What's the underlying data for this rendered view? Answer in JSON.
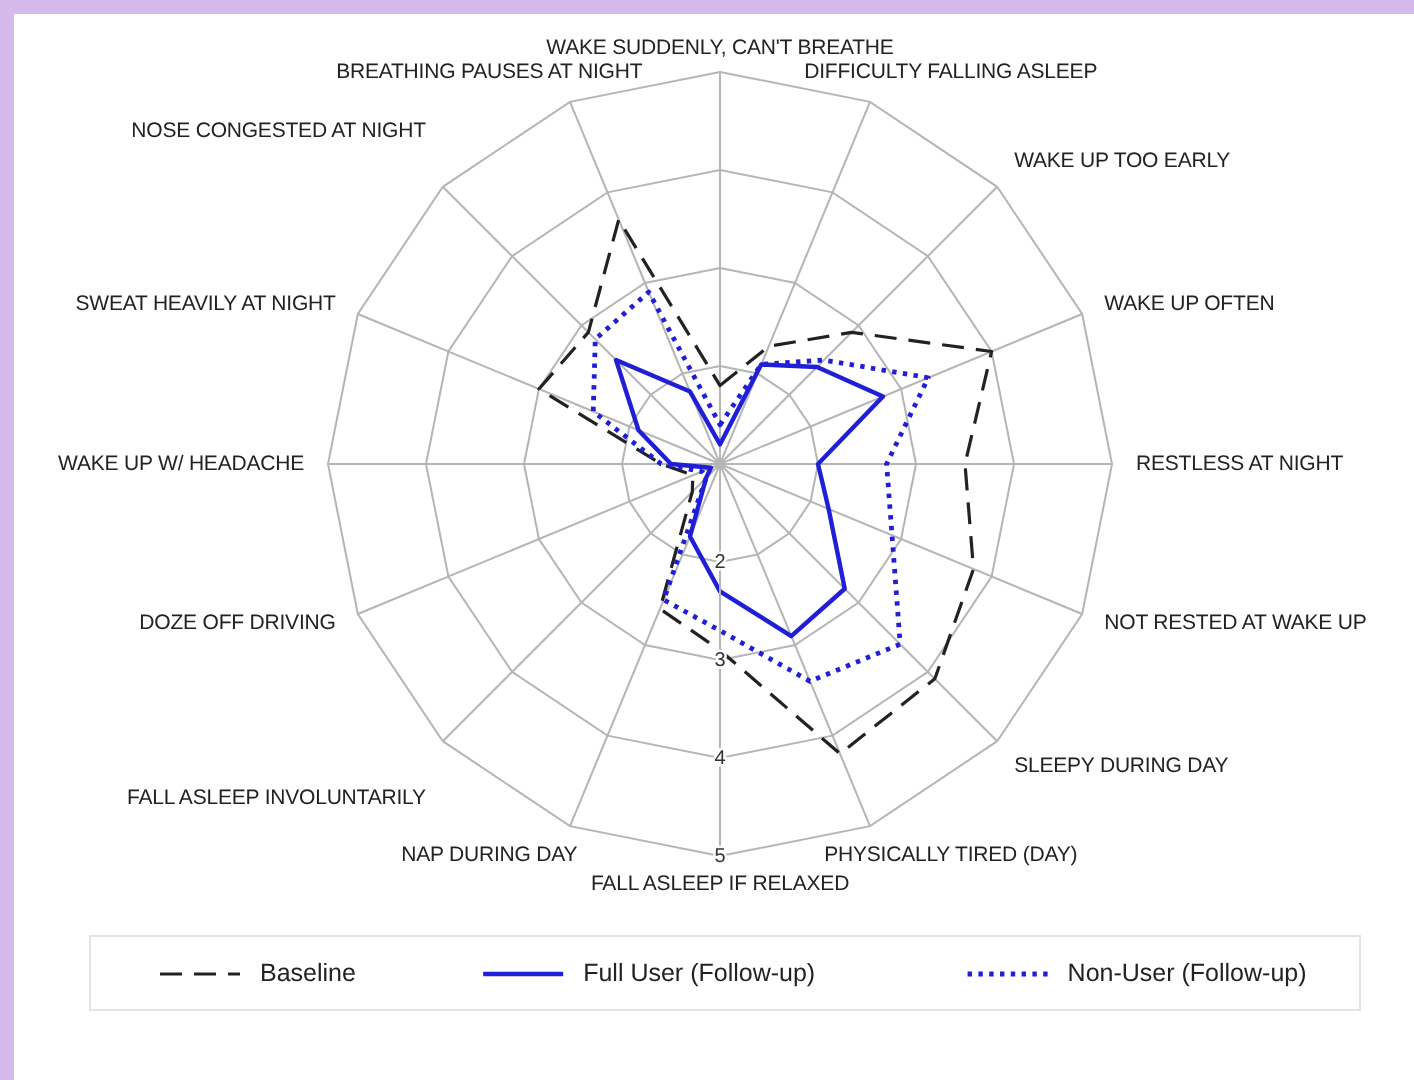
{
  "chart_data": {
    "type": "radar",
    "categories": [
      "WAKE SUDDENLY, CAN'T BREATHE",
      "DIFFICULTY FALLING ASLEEP",
      "WAKE UP TOO EARLY",
      "WAKE UP OFTEN",
      "RESTLESS AT NIGHT",
      "NOT RESTED AT WAKE UP",
      "SLEEPY DURING DAY",
      "PHYSICALLY TIRED (DAY)",
      "FALL ASLEEP IF RELAXED",
      "NAP DURING DAY",
      "FALL ASLEEP INVOLUNTARILY",
      "DOZE OFF DRIVING",
      "WAKE UP W/ HEADACHE",
      "SWEAT HEAVILY AT NIGHT",
      "NOSE CONGESTED AT NIGHT",
      "BREATHING PAUSES AT NIGHT"
    ],
    "series": [
      {
        "name": "Baseline",
        "color": "#222222",
        "line_style": "dashed",
        "values": [
          1.8,
          2.3,
          2.9,
          4.0,
          3.5,
          3.8,
          4.1,
          4.2,
          2.9,
          2.6,
          1.4,
          1.3,
          1.6,
          3.0,
          2.9,
          3.7
        ]
      },
      {
        "name": "Full User (Follow-up)",
        "color": "#1f1fd6",
        "line_style": "solid",
        "values": [
          1.2,
          2.1,
          2.4,
          2.8,
          2.0,
          2.2,
          2.8,
          2.9,
          2.3,
          1.8,
          1.2,
          1.1,
          1.5,
          1.9,
          2.5,
          1.8
        ]
      },
      {
        "name": "Non-User (Follow-up)",
        "color": "#1f1fd6",
        "line_style": "dotted",
        "values": [
          1.4,
          2.1,
          2.5,
          3.3,
          2.7,
          2.9,
          3.6,
          3.4,
          2.7,
          2.5,
          1.2,
          1.2,
          1.6,
          2.4,
          2.8,
          2.9
        ]
      }
    ],
    "ylim": [
      1,
      5
    ],
    "yticks": [
      2,
      3,
      4,
      5
    ],
    "grid": true,
    "legend": "bottom"
  }
}
